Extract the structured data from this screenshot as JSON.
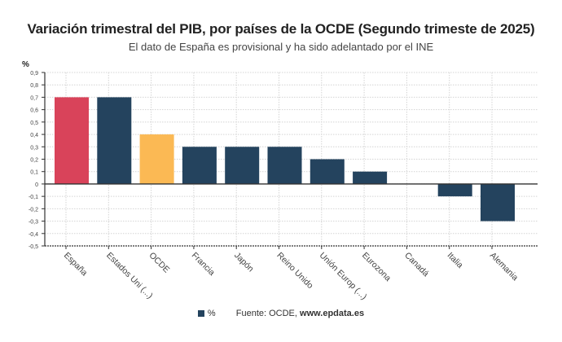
{
  "chart_data": {
    "type": "bar",
    "title": "Variación trimestral del PIB, por países de la OCDE (Segundo trimeste de 2025)",
    "subtitle": "El dato de España es provisional y ha sido adelantado por el INE",
    "ylabel": "%",
    "ylim": [
      -0.5,
      0.9
    ],
    "yticks": [
      "0,9",
      "0,8",
      "0,7",
      "0,6",
      "0,5",
      "0,4",
      "0,3",
      "0,2",
      "0,1",
      "0",
      "-0,1",
      "-0,2",
      "-0,3",
      "-0,4",
      "-0,5"
    ],
    "grid": true,
    "legend_position": "bottom",
    "categories": [
      "España",
      "Estados Uni (...)",
      "OCDE",
      "Francia",
      "Japón",
      "Reino Unido",
      "Unión Europ (...)",
      "Eurozona",
      "Canadá",
      "Italia",
      "Alemania"
    ],
    "series": [
      {
        "name": "%",
        "values": [
          0.7,
          0.7,
          0.4,
          0.3,
          0.3,
          0.3,
          0.2,
          0.1,
          0,
          -0.1,
          -0.3
        ]
      }
    ],
    "colors": {
      "default": "#24435e",
      "highlight_spain": "#d9435a",
      "highlight_oecd": "#fbb954"
    },
    "bar_colors": [
      "#d9435a",
      "#24435e",
      "#fbb954",
      "#24435e",
      "#24435e",
      "#24435e",
      "#24435e",
      "#24435e",
      "#24435e",
      "#24435e",
      "#24435e"
    ]
  },
  "footer": {
    "legend_label": "%",
    "source_prefix": "Fuente: OCDE, ",
    "source_site": "www.epdata.es"
  }
}
